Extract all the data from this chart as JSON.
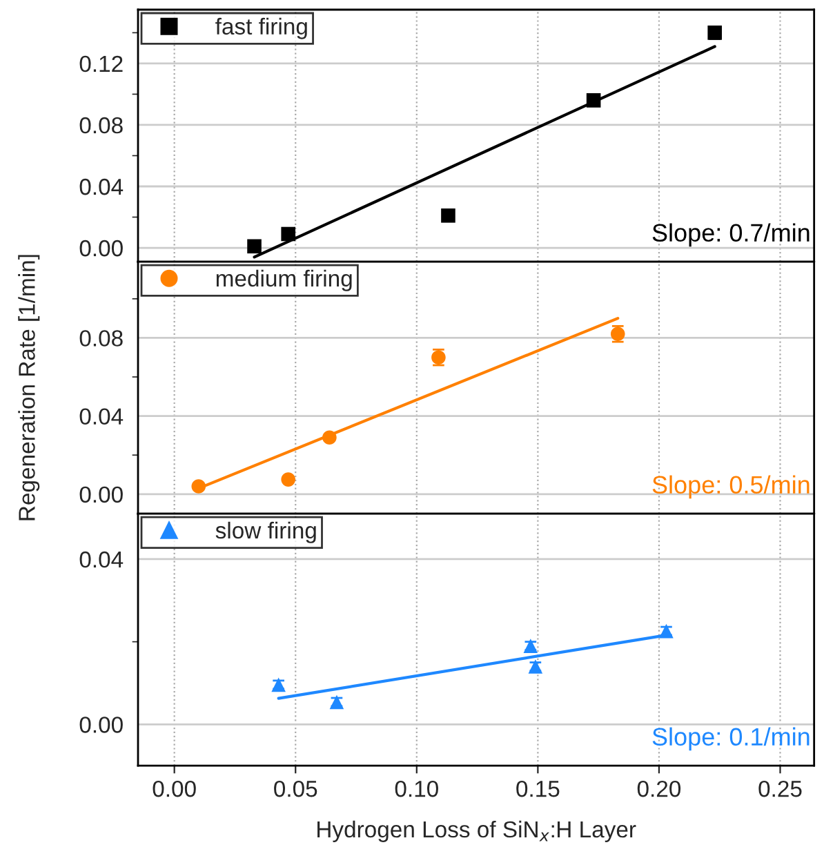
{
  "chart_data": [
    {
      "type": "scatter",
      "ylabel": "Regeneration Rate [1/min]",
      "xlim": [
        -0.015,
        0.264
      ],
      "ylim": [
        -0.009,
        0.155
      ],
      "xticks": [
        0,
        0.05,
        0.1,
        0.15,
        0.2,
        0.25
      ],
      "yticks": [
        {
          "value": 0,
          "label": "0.00"
        },
        {
          "value": 0.02,
          "label": null
        },
        0.04,
        {
          "value": 0.06,
          "label": null
        },
        0.08,
        {
          "value": 0.1,
          "label": null
        },
        0.12,
        {
          "value": 0.14,
          "label": null
        }
      ],
      "tick_labels": "y",
      "grid": true,
      "legend": "top left",
      "annotations": [
        "Slope: 0.7/min"
      ],
      "series": [
        {
          "name": "fast firing",
          "color": "#000000",
          "marker": "square",
          "x": [
            0.033,
            0.047,
            0.113,
            0.173,
            0.223
          ],
          "values": [
            0.001,
            0.009,
            0.021,
            0.096,
            0.14
          ],
          "errors": [
            null,
            null,
            null,
            0.003,
            0.004
          ]
        },
        {
          "type": "line",
          "color": "#000000",
          "marker": "none",
          "x": [
            0.033,
            0.223
          ],
          "values": [
            -0.006,
            0.131
          ]
        }
      ]
    },
    {
      "type": "scatter",
      "xlim": [
        -0.015,
        0.264
      ],
      "ylim": [
        -0.01,
        0.119
      ],
      "xticks": [
        0,
        0.05,
        0.1,
        0.15,
        0.2,
        0.25
      ],
      "yticks": [
        {
          "value": 0,
          "label": "0.00"
        },
        {
          "value": 0.02,
          "label": null
        },
        0.04,
        {
          "value": 0.06,
          "label": null
        },
        0.08,
        {
          "value": 0.1,
          "label": null
        }
      ],
      "tick_labels": "y",
      "grid": true,
      "legend": "top left",
      "annotations": [
        "Slope: 0.5/min"
      ],
      "series": [
        {
          "name": "medium firing",
          "color": "#ff8000",
          "marker": "circle",
          "x": [
            0.01,
            0.047,
            0.064,
            0.109,
            0.183
          ],
          "values": [
            0.004,
            0.0075,
            0.029,
            0.07,
            0.082
          ],
          "errors": [
            null,
            null,
            null,
            0.004,
            0.004
          ]
        },
        {
          "type": "line",
          "color": "#ff8000",
          "marker": "none",
          "x": [
            0.01,
            0.183
          ],
          "values": [
            0.003,
            0.09
          ]
        }
      ]
    },
    {
      "type": "scatter",
      "xlabel": "Hydrogen Loss of SiN$_{x}$:H Layer",
      "xlim": [
        -0.015,
        0.264
      ],
      "ylim": [
        -0.01,
        0.051
      ],
      "xticks": [
        {
          "value": 0,
          "label": "0.00"
        },
        0.05,
        {
          "value": 0.1,
          "label": "0.10"
        },
        0.15,
        {
          "value": 0.2,
          "label": "0.20"
        },
        0.25
      ],
      "yticks": [
        {
          "value": 0,
          "label": "0.00"
        },
        {
          "value": 0.02,
          "label": null
        },
        0.04
      ],
      "grid": true,
      "legend": "top left",
      "annotations": [
        "Slope: 0.1/min"
      ],
      "series": [
        {
          "name": "slow firing",
          "color": "#1e88ff",
          "marker": "triangle",
          "x": [
            0.043,
            0.067,
            0.147,
            0.149,
            0.203
          ],
          "values": [
            0.0096,
            0.0054,
            0.019,
            0.014,
            0.0226
          ],
          "errors": [
            0.001,
            0.001,
            0.001,
            0.001,
            0.001
          ]
        },
        {
          "type": "line",
          "color": "#1e88ff",
          "marker": "none",
          "x": [
            0.043,
            0.203
          ],
          "values": [
            0.0063,
            0.0216
          ]
        }
      ]
    }
  ]
}
